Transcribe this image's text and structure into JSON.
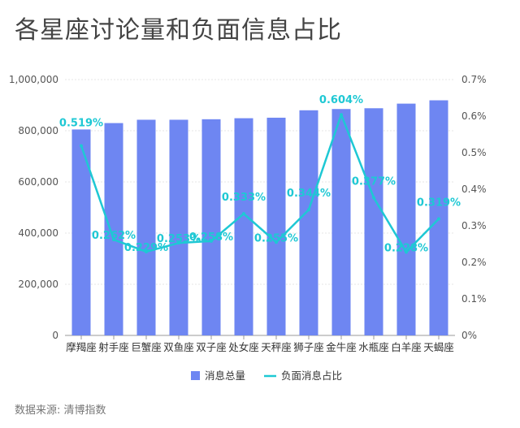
{
  "title": "各星座讨论量和负面信息占比",
  "source": "数据来源: 清博指数",
  "colors": {
    "bar": "#6e86f2",
    "line": "#1ec8d4",
    "grid": "#e6e6e6",
    "axis": "#999999"
  },
  "chart_data": {
    "type": "bar",
    "categories": [
      "摩羯座",
      "射手座",
      "巨蟹座",
      "双鱼座",
      "双子座",
      "处女座",
      "天秤座",
      "狮子座",
      "金牛座",
      "水瓶座",
      "白羊座",
      "天蝎座"
    ],
    "series": [
      {
        "name": "消息总量",
        "type": "bar",
        "axis": "left",
        "values": [
          805000,
          830000,
          843000,
          843000,
          845000,
          849000,
          851000,
          880000,
          885000,
          888000,
          906000,
          919000
        ]
      },
      {
        "name": "负面消息占比",
        "type": "line",
        "axis": "right",
        "values": [
          0.519,
          0.262,
          0.229,
          0.253,
          0.258,
          0.333,
          0.255,
          0.344,
          0.604,
          0.377,
          0.228,
          0.319
        ],
        "labels": [
          "0.519%",
          "0.262%",
          "0.229%",
          "0.253%",
          "0.258%",
          "0.333%",
          "0.255%",
          "0.344%",
          "0.604%",
          "0.377%",
          "0.228%",
          "0.319%"
        ]
      }
    ],
    "ylim_left": [
      0,
      1000000
    ],
    "ylim_right": [
      0,
      0.7
    ],
    "yticks_left": [
      "0",
      "200,000",
      "400,000",
      "600,000",
      "800,000",
      "1,000,000"
    ],
    "yticks_right": [
      "0%",
      "0.1%",
      "0.2%",
      "0.3%",
      "0.4%",
      "0.5%",
      "0.6%",
      "0.7%"
    ],
    "legend": {
      "position": "bottom",
      "items": [
        "消息总量",
        "负面消息占比"
      ]
    },
    "grid": true
  }
}
